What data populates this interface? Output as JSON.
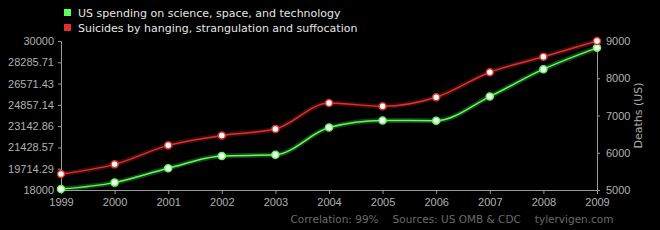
{
  "chart_data": {
    "type": "line",
    "x": [
      1999,
      2000,
      2001,
      2002,
      2003,
      2004,
      2005,
      2006,
      2007,
      2008,
      2009
    ],
    "xlim": [
      1999,
      2009
    ],
    "xticks": [
      1999,
      2000,
      2001,
      2002,
      2003,
      2004,
      2005,
      2006,
      2007,
      2008,
      2009
    ],
    "ylim": [
      18000,
      30000
    ],
    "yticks": [
      18000,
      19714.29,
      21428.57,
      23142.86,
      24857.14,
      26571.43,
      28285.71,
      30000
    ],
    "y2lim": [
      5000,
      9000
    ],
    "y2ticks": [
      5000,
      6000,
      7000,
      8000,
      9000
    ],
    "y2label": "Deaths (US)",
    "legend": "top-left",
    "grid": false,
    "marker": "circle",
    "series": [
      {
        "name": "US spending on science, space, and technology",
        "color": "#5cff5c",
        "values": [
          18079,
          18594,
          19753,
          20734,
          20831,
          23029,
          23597,
          23584,
          25525,
          27731,
          29449
        ]
      },
      {
        "name": "Suicides by hanging, strangulation and suffocation",
        "color": "#e0302c",
        "axis": "y2",
        "values": [
          5427,
          5688,
          6198,
          6462,
          6635,
          7336,
          7248,
          7491,
          8161,
          8578,
          9000
        ]
      }
    ],
    "annotations": [
      "Correlation: 99%",
      "Sources: US OMB & CDC",
      "tylervigen.com"
    ]
  }
}
